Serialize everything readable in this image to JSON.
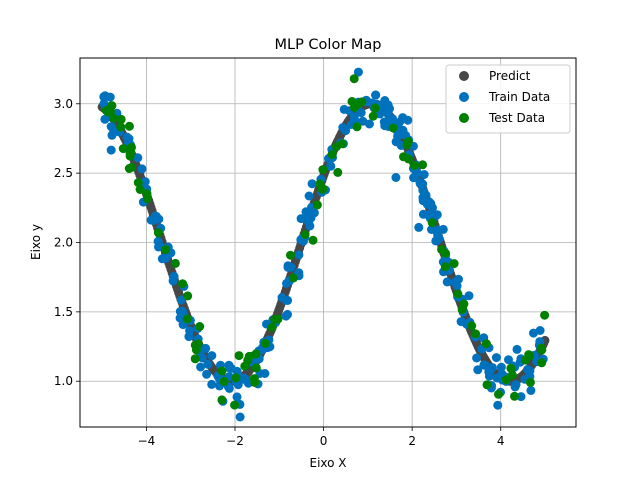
{
  "chart_data": {
    "type": "scatter",
    "title": "MLP Color Map",
    "xlabel": "Eixo X",
    "ylabel": "Eixo y",
    "xlim": [
      -5.5,
      5.7
    ],
    "ylim": [
      0.67,
      3.33
    ],
    "xticks": [
      -4,
      -2,
      0,
      2,
      4
    ],
    "yticks": [
      1.0,
      1.5,
      2.0,
      2.5,
      3.0
    ],
    "xtick_labels": [
      "−4",
      "−2",
      "0",
      "2",
      "4"
    ],
    "ytick_labels": [
      "1.0",
      "1.5",
      "2.0",
      "2.5",
      "3.0"
    ],
    "grid": true,
    "legend_position": "top-right",
    "model": {
      "baseline": 2.0,
      "amplitude": 1.0,
      "frequency": 1.0,
      "phase": 0.5
    },
    "series": [
      {
        "name": "Predict",
        "color": "#474747",
        "x_range": [
          -5.0,
          5.0
        ],
        "n_points": 400
      },
      {
        "name": "Train Data",
        "color": "#0072bd",
        "x_range": [
          -5.0,
          5.0
        ],
        "n_points": 300,
        "noise": 0.09
      },
      {
        "name": "Test Data",
        "color": "#008000",
        "x_range": [
          -5.0,
          5.0
        ],
        "n_points": 100,
        "noise": 0.09
      }
    ]
  }
}
